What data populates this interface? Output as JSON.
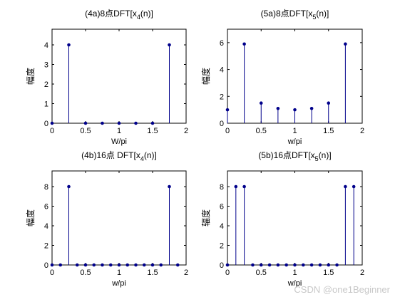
{
  "watermark": "CSDN @one1Beginner",
  "colors": {
    "stem": "#00008b",
    "axis": "#000000",
    "background": "#ffffff"
  },
  "chart_data": [
    {
      "id": "p4a",
      "type": "stem",
      "title": {
        "pre": "(4a)8点DFT[x",
        "sub": "4",
        "post": "(n)]"
      },
      "xlabel": "W/pi",
      "ylabel": "幅度",
      "xlim": [
        0,
        2
      ],
      "ylim": [
        0,
        4.8
      ],
      "xticks": [
        0,
        0.5,
        1,
        1.5,
        2
      ],
      "xtick_labels": [
        "0",
        "0.5",
        "1",
        "1.5",
        "2"
      ],
      "yticks": [
        0,
        1,
        2,
        3,
        4
      ],
      "ytick_labels": [
        "0",
        "1",
        "2",
        "3",
        "4"
      ],
      "x": [
        0,
        0.25,
        0.5,
        0.75,
        1,
        1.25,
        1.5,
        1.75
      ],
      "y": [
        0,
        4,
        0,
        0,
        0,
        0,
        0,
        4
      ]
    },
    {
      "id": "p5a",
      "type": "stem",
      "title": {
        "pre": "(5a)8点DFT[x",
        "sub": "5",
        "post": "(n)]"
      },
      "xlabel": "w/pi",
      "ylabel": "幅度",
      "xlim": [
        0,
        2
      ],
      "ylim": [
        0,
        7
      ],
      "xticks": [
        0,
        0.5,
        1,
        1.5,
        2
      ],
      "xtick_labels": [
        "0",
        "0.5",
        "1",
        "1.5",
        "2"
      ],
      "yticks": [
        0,
        2,
        4,
        6
      ],
      "ytick_labels": [
        "0",
        "2",
        "4",
        "6"
      ],
      "x": [
        0,
        0.25,
        0.5,
        0.75,
        1,
        1.25,
        1.5,
        1.75
      ],
      "y": [
        1,
        5.9,
        1.5,
        1.1,
        1.0,
        1.1,
        1.5,
        5.9
      ]
    },
    {
      "id": "p4b",
      "type": "stem",
      "title": {
        "pre": "(4b)16点 DFT[x",
        "sub": "4",
        "post": "(n)]"
      },
      "xlabel": "w/pi",
      "ylabel": "幅度",
      "xlim": [
        0,
        2
      ],
      "ylim": [
        0,
        9.6
      ],
      "xticks": [
        0,
        0.5,
        1,
        1.5,
        2
      ],
      "xtick_labels": [
        "0",
        "0.5",
        "1",
        "1.5",
        "2"
      ],
      "yticks": [
        0,
        2,
        4,
        6,
        8
      ],
      "ytick_labels": [
        "0",
        "2",
        "4",
        "6",
        "8"
      ],
      "x": [
        0,
        0.125,
        0.25,
        0.375,
        0.5,
        0.625,
        0.75,
        0.875,
        1,
        1.125,
        1.25,
        1.375,
        1.5,
        1.625,
        1.75,
        1.875
      ],
      "y": [
        0,
        0,
        8,
        0,
        0,
        0,
        0,
        0,
        0,
        0,
        0,
        0,
        0,
        0,
        8,
        0
      ]
    },
    {
      "id": "p5b",
      "type": "stem",
      "title": {
        "pre": "(5b)16点DFT[x",
        "sub": "5",
        "post": "(n)]"
      },
      "xlabel": "w/pi",
      "ylabel": "辐度",
      "xlim": [
        0,
        2
      ],
      "ylim": [
        0,
        9.6
      ],
      "xticks": [
        0,
        0.5,
        1,
        1.5,
        2
      ],
      "xtick_labels": [
        "0",
        "0.5",
        "1",
        "1.5",
        "2"
      ],
      "yticks": [
        0,
        2,
        4,
        6,
        8
      ],
      "ytick_labels": [
        "0",
        "2",
        "4",
        "6",
        "8"
      ],
      "x": [
        0,
        0.125,
        0.25,
        0.375,
        0.5,
        0.625,
        0.75,
        0.875,
        1,
        1.125,
        1.25,
        1.375,
        1.5,
        1.625,
        1.75,
        1.875
      ],
      "y": [
        0,
        8,
        8,
        0,
        0,
        0,
        0,
        0,
        0,
        0,
        0,
        0,
        0,
        0,
        8,
        8
      ]
    }
  ]
}
